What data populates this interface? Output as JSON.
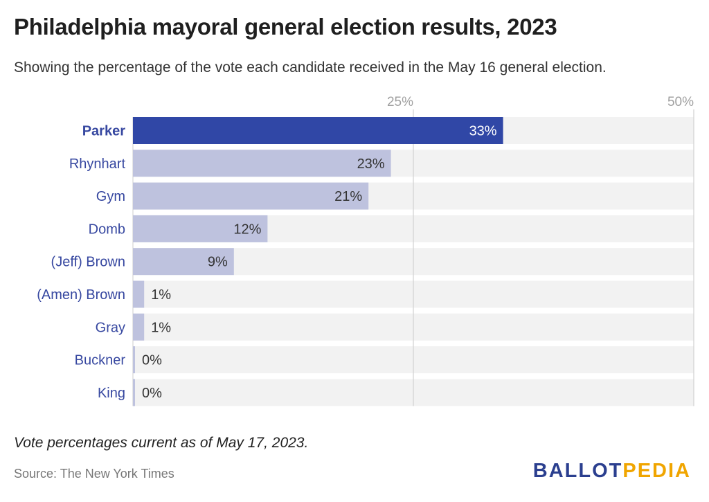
{
  "header": {
    "title": "Philadelphia mayoral general election results, 2023",
    "subtitle": "Showing the percentage of the vote each candidate received in the May 16 general election."
  },
  "footer": {
    "note": "Vote percentages current as of May 17, 2023.",
    "source": "Source: The New York Times",
    "logo_part1": "BALLOT",
    "logo_part2": "PEDIA"
  },
  "colors": {
    "highlight": "#3047a6",
    "bar": "#bec2de",
    "track": "#f2f2f2",
    "label": "#3647a0",
    "axis_tick": "#a0a0a0",
    "logo_blue": "#2b3f8f",
    "logo_gold": "#f0a500"
  },
  "chart_data": {
    "type": "bar",
    "orientation": "horizontal",
    "categories": [
      "Parker",
      "Rhynhart",
      "Gym",
      "Domb",
      "(Jeff) Brown",
      "(Amen) Brown",
      "Gray",
      "Buckner",
      "King"
    ],
    "values": [
      33,
      23,
      21,
      12,
      9,
      1,
      1,
      0,
      0
    ],
    "value_labels": [
      "33%",
      "23%",
      "21%",
      "12%",
      "9%",
      "1%",
      "1%",
      "0%",
      "0%"
    ],
    "highlight_index": 0,
    "xlim": [
      0,
      50
    ],
    "xticks": [
      25,
      50
    ],
    "xtick_labels": [
      "25%",
      "50%"
    ],
    "grid": true
  }
}
